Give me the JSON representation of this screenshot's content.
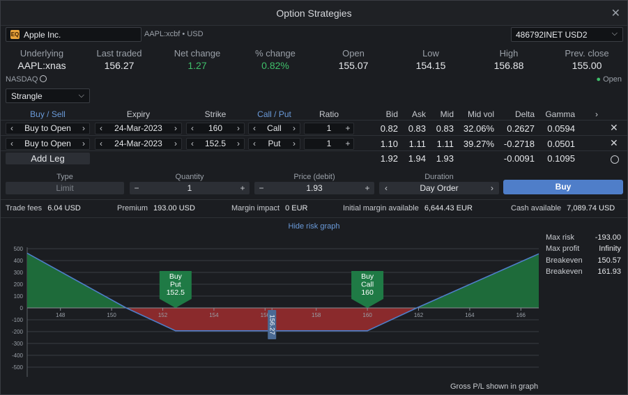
{
  "window": {
    "title": "Option Strategies"
  },
  "instrument": {
    "logo_text": "EQ",
    "name": "Apple Inc.",
    "code": "AAPL:xcbf • USD"
  },
  "account": {
    "value": "486792INET USD2"
  },
  "stats": [
    {
      "label": "Underlying",
      "value": "AAPL:xnas"
    },
    {
      "label": "Last traded",
      "value": "156.27"
    },
    {
      "label": "Net change",
      "value": "1.27"
    },
    {
      "label": "% change",
      "value": "0.82%"
    },
    {
      "label": "Open",
      "value": "155.07"
    },
    {
      "label": "Low",
      "value": "154.15"
    },
    {
      "label": "High",
      "value": "156.88"
    },
    {
      "label": "Prev. close",
      "value": "155.00"
    }
  ],
  "exchange": {
    "name": "NASDAQ",
    "status": "Open"
  },
  "strategy": {
    "selected": "Strangle"
  },
  "legs_header": {
    "buy_sell": "Buy / Sell",
    "expiry": "Expiry",
    "strike": "Strike",
    "call_put": "Call / Put",
    "ratio": "Ratio",
    "bid": "Bid",
    "ask": "Ask",
    "mid": "Mid",
    "mid_vol": "Mid vol",
    "delta": "Delta",
    "gamma": "Gamma"
  },
  "legs": [
    {
      "action": "Buy to Open",
      "expiry": "24-Mar-2023",
      "strike": "160",
      "type": "Call",
      "ratio": "1",
      "bid": "0.82",
      "ask": "0.83",
      "mid": "0.83",
      "mid_vol": "32.06%",
      "delta": "0.2627",
      "gamma": "0.0594"
    },
    {
      "action": "Buy to Open",
      "expiry": "24-Mar-2023",
      "strike": "152.5",
      "type": "Put",
      "ratio": "1",
      "bid": "1.10",
      "ask": "1.11",
      "mid": "1.11",
      "mid_vol": "39.27%",
      "delta": "-0.2718",
      "gamma": "0.0501"
    }
  ],
  "totals": {
    "add_leg": "Add Leg",
    "bid": "1.92",
    "ask": "1.94",
    "mid": "1.93",
    "delta": "-0.0091",
    "gamma": "0.1095"
  },
  "order": {
    "type_label": "Type",
    "type_value": "Limit",
    "quantity_label": "Quantity",
    "quantity_value": "1",
    "price_label": "Price (debit)",
    "price_value": "1.93",
    "duration_label": "Duration",
    "duration_value": "Day Order",
    "buy_label": "Buy"
  },
  "info": [
    {
      "label": "Trade fees",
      "value": "6.04 USD"
    },
    {
      "label": "Premium",
      "value": "193.00 USD"
    },
    {
      "label": "Margin impact",
      "value": "0 EUR"
    },
    {
      "label": "Initial margin available",
      "value": "6,644.43 EUR"
    },
    {
      "label": "Cash available",
      "value": "7,089.74 USD"
    }
  ],
  "risk_toggle": "Hide risk graph",
  "risk_stats": [
    {
      "label": "Max risk",
      "value": "-193.00"
    },
    {
      "label": "Max profit",
      "value": "Infinity"
    },
    {
      "label": "Breakeven",
      "value": "150.57"
    },
    {
      "label": "Breakeven",
      "value": "161.93"
    }
  ],
  "graph_footer": "Gross P/L shown in graph",
  "colors": {
    "accent": "#4f7ec9",
    "positive": "#3fbf6a",
    "profit_fill": "#1e6b3a",
    "loss_fill": "#8a2a2c",
    "payoff_line": "#4f7ec9"
  },
  "chart_data": {
    "type": "area",
    "x_ticks": [
      "148",
      "150",
      "152",
      "154",
      "156",
      "158",
      "160",
      "162",
      "164",
      "166"
    ],
    "y_ticks": [
      "500",
      "400",
      "300",
      "200",
      "100",
      "0",
      "-100",
      "-200",
      "-300",
      "-400",
      "-500"
    ],
    "xlim": [
      146.7,
      166.7
    ],
    "ylim": [
      -500,
      500
    ],
    "payoff": {
      "x": [
        146.7,
        150.57,
        152.5,
        160,
        161.93,
        166.7
      ],
      "y": [
        462,
        0,
        -193,
        -193,
        0,
        457
      ]
    },
    "markers": [
      {
        "x": 152.5,
        "lines": [
          "Buy",
          "Put",
          "152.5"
        ]
      },
      {
        "x": 160,
        "lines": [
          "Buy",
          "Call",
          "160"
        ]
      }
    ],
    "current_price": {
      "x": 156.27,
      "label": "156.27"
    }
  }
}
